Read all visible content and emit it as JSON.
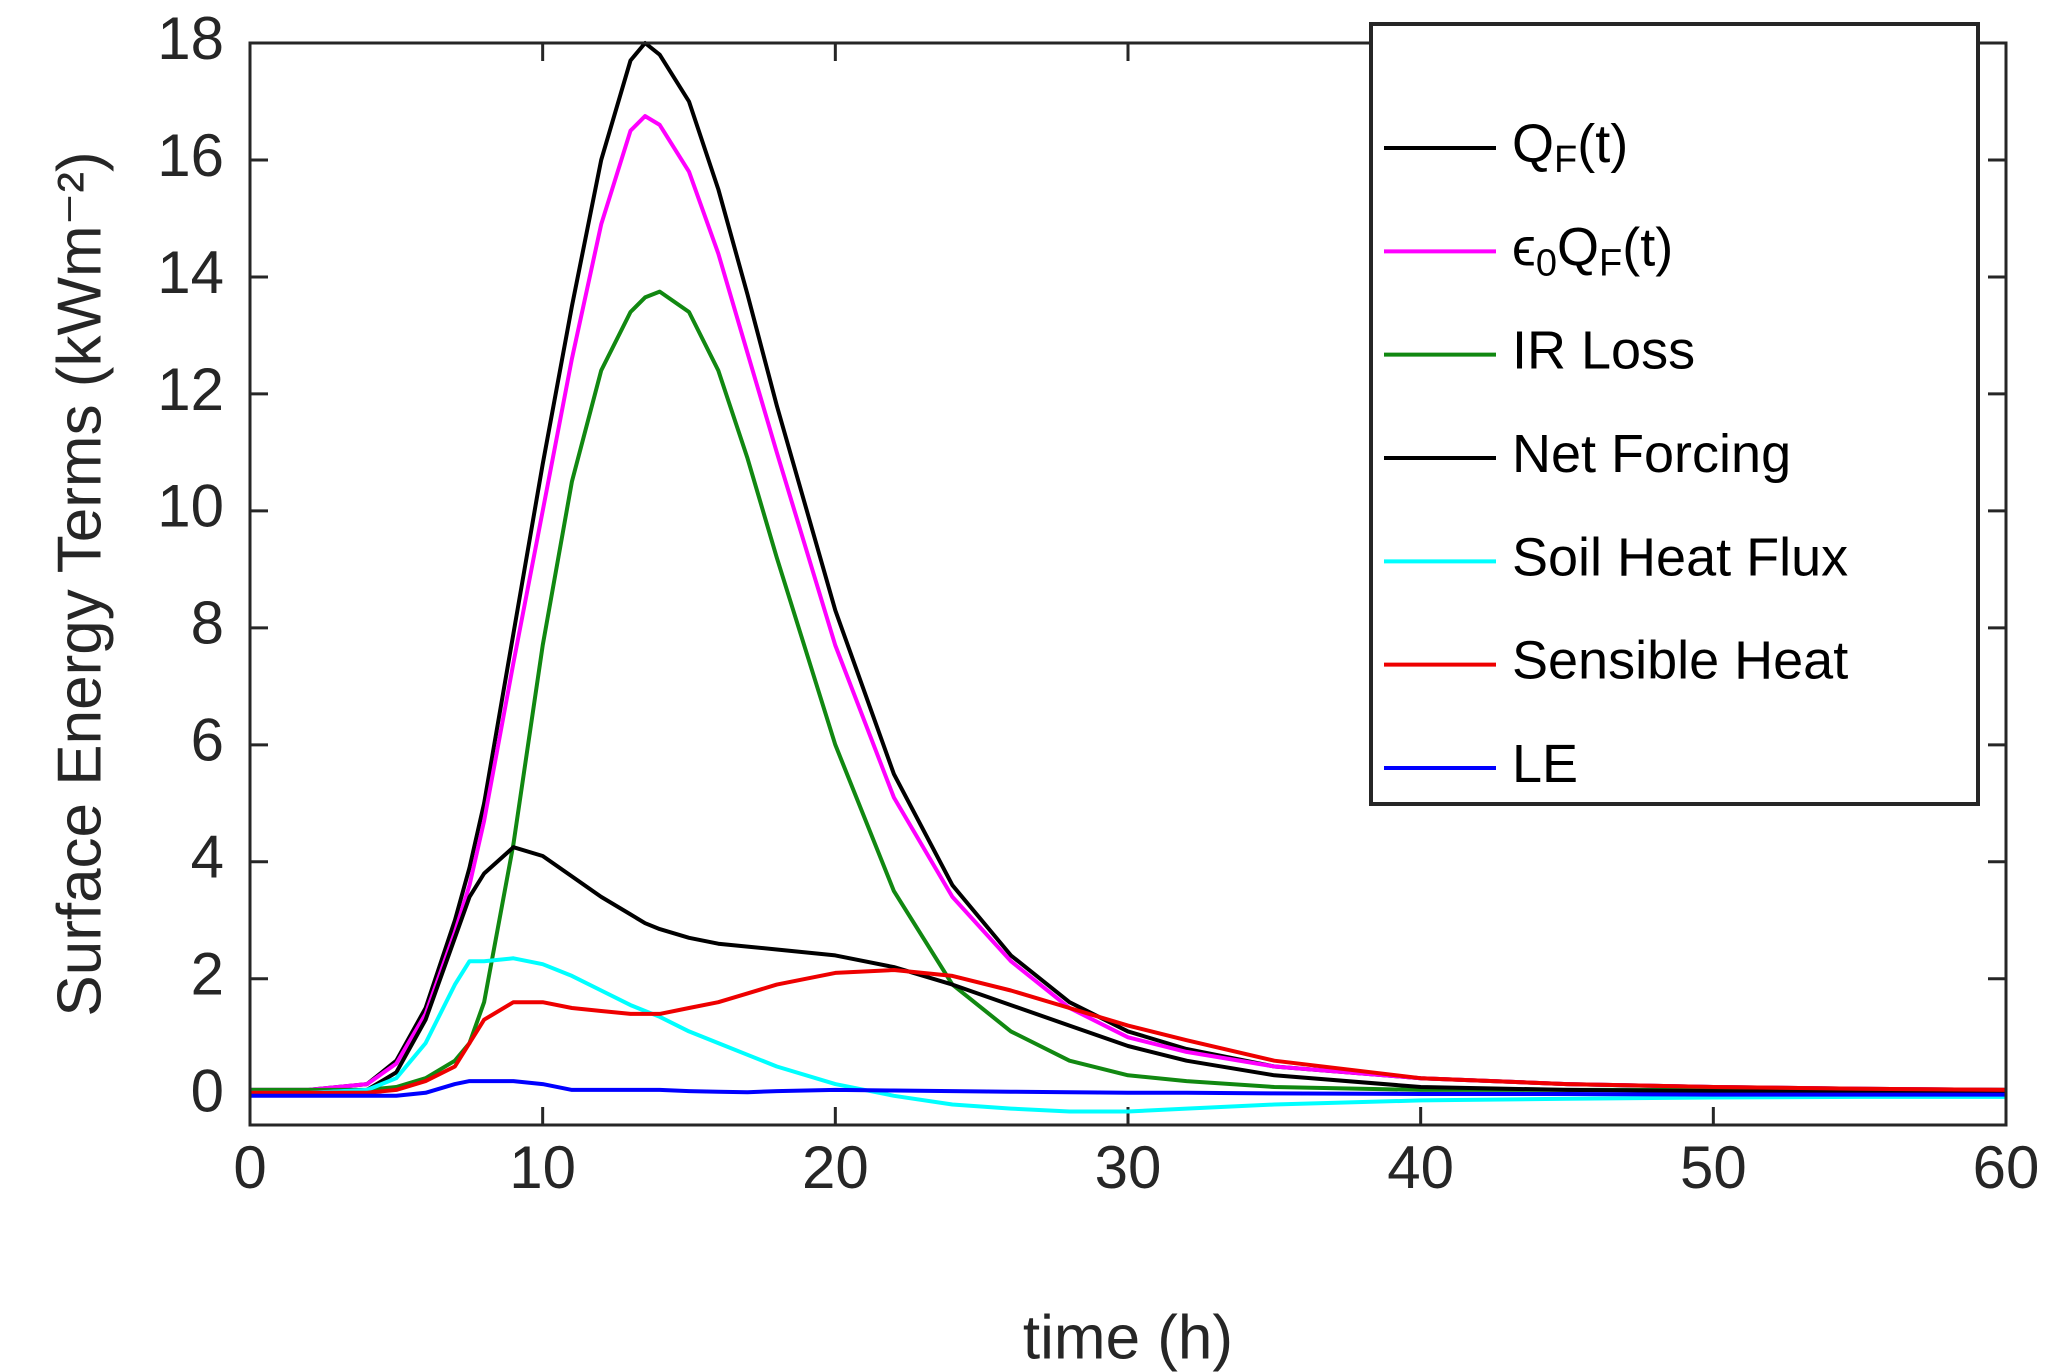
{
  "chart_data": {
    "type": "line",
    "xlabel": "time (h)",
    "ylabel": "Surface Energy Terms (kWm⁻²)",
    "xlim": [
      0,
      60
    ],
    "xticks": [
      0,
      10,
      20,
      30,
      40,
      50,
      60
    ],
    "ylim": [
      -0.5,
      18
    ],
    "yticks": [
      0,
      2,
      4,
      6,
      8,
      10,
      12,
      14,
      16,
      18
    ],
    "legend": "upper right",
    "x": [
      0,
      2,
      4,
      5,
      6,
      7,
      7.5,
      8,
      9,
      10,
      11,
      12,
      13,
      13.5,
      14,
      15,
      16,
      17,
      18,
      20,
      22,
      24,
      26,
      28,
      30,
      32,
      35,
      40,
      45,
      50,
      55,
      60
    ],
    "series": [
      {
        "name": "Q_F(t)",
        "color": "#000000",
        "values": [
          0.1,
          0.1,
          0.2,
          0.6,
          1.5,
          3.0,
          3.9,
          5.0,
          7.9,
          10.8,
          13.5,
          16.0,
          17.7,
          18.0,
          17.8,
          17.0,
          15.5,
          13.7,
          11.8,
          8.3,
          5.5,
          3.6,
          2.4,
          1.6,
          1.1,
          0.8,
          0.5,
          0.3,
          0.2,
          0.15,
          0.12,
          0.1
        ]
      },
      {
        "name": "ϵ_0Q_F(t)",
        "color": "#ff00ff",
        "values": [
          0.1,
          0.1,
          0.2,
          0.55,
          1.4,
          2.8,
          3.6,
          4.7,
          7.4,
          10.0,
          12.6,
          14.9,
          16.5,
          16.75,
          16.6,
          15.8,
          14.4,
          12.7,
          11.0,
          7.7,
          5.1,
          3.4,
          2.3,
          1.5,
          1.0,
          0.75,
          0.5,
          0.3,
          0.2,
          0.15,
          0.12,
          0.1
        ]
      },
      {
        "name": "IR Loss",
        "color": "#118811",
        "values": [
          0.1,
          0.1,
          0.1,
          0.15,
          0.3,
          0.6,
          0.9,
          1.6,
          4.3,
          7.7,
          10.5,
          12.4,
          13.4,
          13.65,
          13.75,
          13.4,
          12.4,
          10.9,
          9.2,
          6.0,
          3.5,
          1.9,
          1.1,
          0.6,
          0.35,
          0.25,
          0.15,
          0.1,
          0.1,
          0.1,
          0.1,
          0.1
        ]
      },
      {
        "name": "Net Forcing",
        "color": "#000000",
        "values": [
          0.05,
          0.05,
          0.1,
          0.4,
          1.3,
          2.7,
          3.4,
          3.8,
          4.25,
          4.1,
          3.75,
          3.4,
          3.1,
          2.95,
          2.85,
          2.7,
          2.6,
          2.55,
          2.5,
          2.4,
          2.2,
          1.9,
          1.55,
          1.2,
          0.85,
          0.6,
          0.35,
          0.15,
          0.1,
          0.08,
          0.06,
          0.05
        ]
      },
      {
        "name": "Soil Heat Flux",
        "color": "#00ffff",
        "values": [
          0.05,
          0.05,
          0.1,
          0.3,
          0.9,
          1.9,
          2.3,
          2.3,
          2.35,
          2.25,
          2.05,
          1.8,
          1.55,
          1.45,
          1.35,
          1.1,
          0.9,
          0.7,
          0.5,
          0.2,
          0.0,
          -0.15,
          -0.22,
          -0.27,
          -0.27,
          -0.22,
          -0.15,
          -0.08,
          -0.05,
          -0.03,
          -0.02,
          -0.02
        ]
      },
      {
        "name": "Sensible Heat",
        "color": "#ee0000",
        "values": [
          0.05,
          0.05,
          0.05,
          0.1,
          0.25,
          0.5,
          0.9,
          1.3,
          1.6,
          1.6,
          1.5,
          1.45,
          1.4,
          1.4,
          1.4,
          1.5,
          1.6,
          1.75,
          1.9,
          2.1,
          2.15,
          2.05,
          1.8,
          1.5,
          1.2,
          0.95,
          0.6,
          0.3,
          0.2,
          0.15,
          0.12,
          0.1
        ]
      },
      {
        "name": "LE",
        "color": "#0000ff",
        "values": [
          0,
          0,
          0,
          0,
          0.05,
          0.2,
          0.25,
          0.25,
          0.25,
          0.2,
          0.1,
          0.1,
          0.1,
          0.1,
          0.1,
          0.08,
          0.07,
          0.06,
          0.08,
          0.1,
          0.09,
          0.08,
          0.07,
          0.06,
          0.05,
          0.05,
          0.04,
          0.03,
          0.03,
          0.02,
          0.02,
          0.02
        ]
      }
    ]
  }
}
